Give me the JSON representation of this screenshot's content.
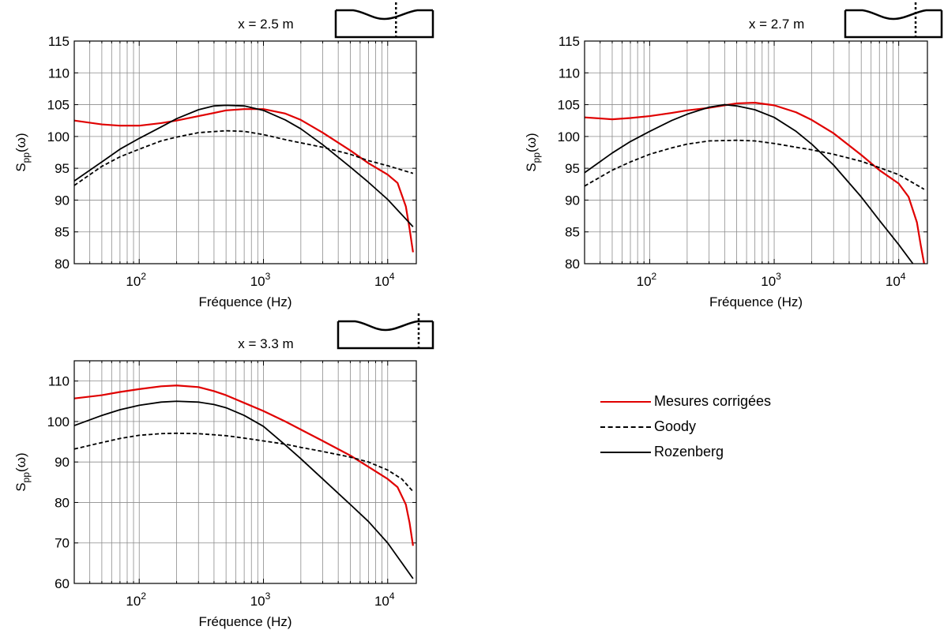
{
  "legend": {
    "entries": [
      {
        "label": "Mesures corrigées",
        "color": "#e00000",
        "style": "solid"
      },
      {
        "label": "Goody",
        "color": "#000000",
        "style": "dashed"
      },
      {
        "label": "Rozenberg",
        "color": "#000000",
        "style": "solid"
      }
    ]
  },
  "chart_data": [
    {
      "type": "line",
      "title": "x = 2.5 m",
      "xlabel": "Fréquence (Hz)",
      "ylabel": "S_pp(ω)",
      "xscale": "log",
      "xlim": [
        30,
        17000
      ],
      "ylim": [
        80,
        115
      ],
      "yticks": [
        80,
        85,
        90,
        95,
        100,
        105,
        110,
        115
      ],
      "xticks": [
        {
          "value": 100,
          "base": "10",
          "exp": "2"
        },
        {
          "value": 1000,
          "base": "10",
          "exp": "3"
        },
        {
          "value": 10000,
          "base": "10",
          "exp": "4"
        }
      ],
      "grid": true,
      "series": [
        {
          "name": "Mesures corrigées",
          "color": "#e00000",
          "style": "solid",
          "x": [
            30,
            50,
            70,
            100,
            150,
            200,
            300,
            400,
            500,
            700,
            1000,
            1500,
            2000,
            3000,
            5000,
            7000,
            10000,
            12000,
            14000,
            15000,
            16000
          ],
          "y": [
            102.5,
            101.9,
            101.7,
            101.7,
            102.1,
            102.5,
            103.2,
            103.7,
            104.1,
            104.3,
            104.3,
            103.6,
            102.6,
            100.6,
            97.8,
            95.8,
            94.0,
            92.7,
            89.0,
            85.5,
            81.8
          ]
        },
        {
          "name": "Goody",
          "color": "#000000",
          "style": "dashed",
          "x": [
            30,
            50,
            70,
            100,
            150,
            200,
            300,
            500,
            700,
            1000,
            1500,
            2000,
            3000,
            5000,
            7000,
            10000,
            16000
          ],
          "y": [
            92.3,
            95.3,
            96.8,
            98.0,
            99.3,
            99.9,
            100.6,
            100.9,
            100.8,
            100.3,
            99.5,
            99.0,
            98.3,
            97.2,
            96.2,
            95.4,
            94.2
          ]
        },
        {
          "name": "Rozenberg",
          "color": "#000000",
          "style": "solid",
          "x": [
            30,
            50,
            70,
            100,
            150,
            200,
            300,
            400,
            500,
            700,
            1000,
            1500,
            2000,
            3000,
            5000,
            7000,
            10000,
            16000
          ],
          "y": [
            93.0,
            96.0,
            98.0,
            99.7,
            101.5,
            102.8,
            104.2,
            104.8,
            104.9,
            104.8,
            104.1,
            102.6,
            101.2,
            98.7,
            95.2,
            92.8,
            90.1,
            85.8
          ]
        }
      ]
    },
    {
      "type": "line",
      "title": "x = 2.7 m",
      "xlabel": "Fréquence (Hz)",
      "ylabel": "S_pp(ω)",
      "xscale": "log",
      "xlim": [
        30,
        17000
      ],
      "ylim": [
        80,
        115
      ],
      "yticks": [
        80,
        85,
        90,
        95,
        100,
        105,
        110,
        115
      ],
      "xticks": [
        {
          "value": 100,
          "base": "10",
          "exp": "2"
        },
        {
          "value": 1000,
          "base": "10",
          "exp": "3"
        },
        {
          "value": 10000,
          "base": "10",
          "exp": "4"
        }
      ],
      "grid": true,
      "series": [
        {
          "name": "Mesures corrigées",
          "color": "#e00000",
          "style": "solid",
          "x": [
            30,
            50,
            70,
            100,
            150,
            200,
            300,
            400,
            500,
            700,
            1000,
            1500,
            2000,
            3000,
            5000,
            7000,
            10000,
            12000,
            14000,
            15000,
            16000
          ],
          "y": [
            103.0,
            102.7,
            102.9,
            103.2,
            103.7,
            104.1,
            104.5,
            104.9,
            105.2,
            105.3,
            104.9,
            103.8,
            102.6,
            100.5,
            97.1,
            94.7,
            92.6,
            90.5,
            86.5,
            83.0,
            80.0
          ]
        },
        {
          "name": "Goody",
          "color": "#000000",
          "style": "dashed",
          "x": [
            30,
            50,
            70,
            100,
            150,
            200,
            300,
            500,
            700,
            1000,
            1500,
            2000,
            3000,
            5000,
            7000,
            10000,
            16000
          ],
          "y": [
            92.2,
            94.7,
            96.0,
            97.2,
            98.2,
            98.8,
            99.3,
            99.4,
            99.3,
            98.9,
            98.3,
            97.9,
            97.2,
            96.1,
            95.1,
            94.0,
            91.7
          ]
        },
        {
          "name": "Rozenberg",
          "color": "#000000",
          "style": "solid",
          "x": [
            30,
            50,
            70,
            100,
            150,
            200,
            300,
            400,
            500,
            700,
            1000,
            1500,
            2000,
            3000,
            5000,
            7000,
            10000,
            13000
          ],
          "y": [
            94.3,
            97.4,
            99.2,
            100.8,
            102.5,
            103.5,
            104.6,
            105.0,
            104.8,
            104.2,
            103.0,
            100.8,
            98.8,
            95.5,
            90.5,
            86.8,
            83.0,
            80.0
          ]
        }
      ]
    },
    {
      "type": "line",
      "title": "x = 3.3 m",
      "xlabel": "Fréquence (Hz)",
      "ylabel": "S_pp(ω)",
      "xscale": "log",
      "xlim": [
        30,
        17000
      ],
      "ylim": [
        60,
        115
      ],
      "yticks": [
        60,
        70,
        80,
        90,
        100,
        110
      ],
      "xticks": [
        {
          "value": 100,
          "base": "10",
          "exp": "2"
        },
        {
          "value": 1000,
          "base": "10",
          "exp": "3"
        },
        {
          "value": 10000,
          "base": "10",
          "exp": "4"
        }
      ],
      "grid": true,
      "series": [
        {
          "name": "Mesures corrigées",
          "color": "#e00000",
          "style": "solid",
          "x": [
            30,
            50,
            70,
            100,
            150,
            200,
            300,
            400,
            500,
            700,
            1000,
            1500,
            2000,
            3000,
            5000,
            7000,
            10000,
            12000,
            14000,
            15000,
            16000
          ],
          "y": [
            105.7,
            106.5,
            107.3,
            108.0,
            108.7,
            108.9,
            108.5,
            107.5,
            106.5,
            104.6,
            102.6,
            100.0,
            98.0,
            95.2,
            91.6,
            88.8,
            85.8,
            83.8,
            79.5,
            75.0,
            69.3
          ]
        },
        {
          "name": "Goody",
          "color": "#000000",
          "style": "dashed",
          "x": [
            30,
            50,
            70,
            100,
            150,
            200,
            300,
            500,
            700,
            1000,
            1500,
            2000,
            3000,
            5000,
            7000,
            10000,
            13000,
            16000
          ],
          "y": [
            93.2,
            94.8,
            95.8,
            96.6,
            97.0,
            97.1,
            97.0,
            96.5,
            95.9,
            95.2,
            94.4,
            93.6,
            92.6,
            91.2,
            90.0,
            88.0,
            85.8,
            82.7
          ]
        },
        {
          "name": "Rozenberg",
          "color": "#000000",
          "style": "solid",
          "x": [
            30,
            50,
            70,
            100,
            150,
            200,
            300,
            400,
            500,
            700,
            1000,
            1500,
            2000,
            3000,
            5000,
            7000,
            10000,
            16000
          ],
          "y": [
            99.0,
            101.5,
            102.9,
            104.0,
            104.8,
            105.0,
            104.8,
            104.2,
            103.4,
            101.5,
            98.8,
            94.2,
            90.8,
            85.8,
            79.5,
            75.3,
            70.0,
            61.2
          ]
        }
      ]
    }
  ]
}
